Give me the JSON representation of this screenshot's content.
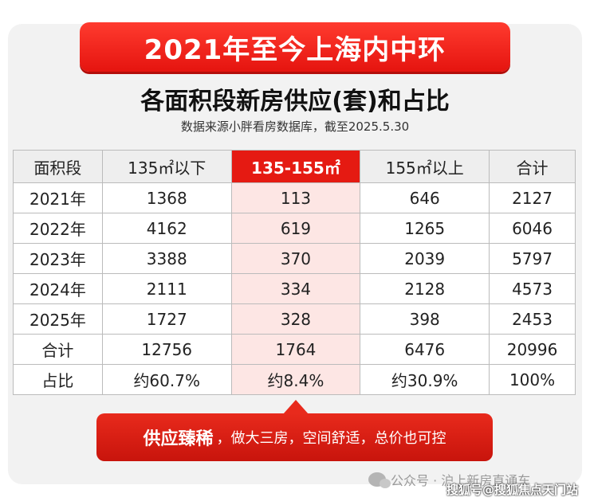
{
  "banner": "2021年至今上海内中环",
  "title": "各面积段新房供应(套)和占比",
  "subtitle": "数据来源小胖看房数据库，截至2025.5.30",
  "table": {
    "headers": [
      "面积段",
      "135㎡以下",
      "135-155㎡",
      "155㎡以上",
      "合计"
    ],
    "rows": [
      [
        "2021年",
        "1368",
        "113",
        "646",
        "2127"
      ],
      [
        "2022年",
        "4162",
        "619",
        "1265",
        "6046"
      ],
      [
        "2023年",
        "3388",
        "370",
        "2039",
        "5797"
      ],
      [
        "2024年",
        "2111",
        "334",
        "2128",
        "4573"
      ],
      [
        "2025年",
        "1727",
        "328",
        "398",
        "2453"
      ],
      [
        "合计",
        "12756",
        "1764",
        "6476",
        "20996"
      ],
      [
        "占比",
        "约60.7%",
        "约8.4%",
        "约30.9%",
        "100%"
      ]
    ],
    "highlight_color": "#e51a12"
  },
  "callout": {
    "strong": "供应臻稀",
    "text": "，做大三房，空间舒适，总价也可控"
  },
  "watermark": {
    "line1": "公众号 · 沪上新房直通车",
    "line2": "搜狐号@搜狐焦点天门站"
  }
}
